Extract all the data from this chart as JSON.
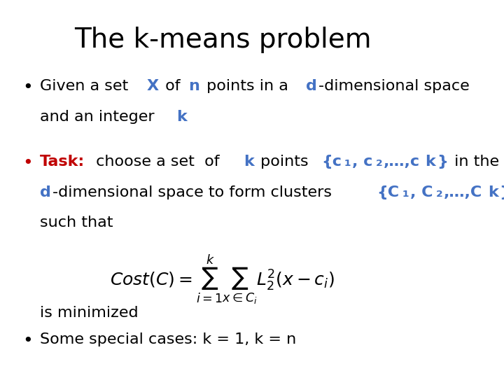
{
  "title": "The k-means problem",
  "title_fontsize": 28,
  "title_color": "#000000",
  "background_color": "#ffffff",
  "bullet1_parts": [
    {
      "text": "Given a set ",
      "color": "#000000",
      "bold": false
    },
    {
      "text": "X",
      "color": "#4472c4",
      "bold": true
    },
    {
      "text": " of ",
      "color": "#000000",
      "bold": false
    },
    {
      "text": "n",
      "color": "#4472c4",
      "bold": true
    },
    {
      "text": " points in a ",
      "color": "#000000",
      "bold": false
    },
    {
      "text": "d",
      "color": "#4472c4",
      "bold": true
    },
    {
      "text": "-dimensional space",
      "color": "#000000",
      "bold": false
    }
  ],
  "bullet1_line2_parts": [
    {
      "text": "and an integer ",
      "color": "#000000",
      "bold": false
    },
    {
      "text": "k",
      "color": "#4472c4",
      "bold": true
    }
  ],
  "bullet2_line1_parts": [
    {
      "text": "Task:",
      "color": "#c00000",
      "bold": true
    },
    {
      "text": " choose a set  of ",
      "color": "#000000",
      "bold": false
    },
    {
      "text": "k",
      "color": "#4472c4",
      "bold": true
    },
    {
      "text": " points ",
      "color": "#000000",
      "bold": false
    },
    {
      "text": "{c",
      "color": "#4472c4",
      "bold": true
    },
    {
      "text": "₁",
      "color": "#4472c4",
      "bold": true
    },
    {
      "text": ", c",
      "color": "#4472c4",
      "bold": true
    },
    {
      "text": "₂",
      "color": "#4472c4",
      "bold": true
    },
    {
      "text": ",…,c",
      "color": "#4472c4",
      "bold": true
    },
    {
      "text": "k",
      "color": "#4472c4",
      "bold": true
    },
    {
      "text": "}",
      "color": "#4472c4",
      "bold": true
    },
    {
      "text": " in the",
      "color": "#000000",
      "bold": false
    }
  ],
  "bullet2_line2_parts": [
    {
      "text": "d",
      "color": "#4472c4",
      "bold": true
    },
    {
      "text": "-dimensional space to form clusters ",
      "color": "#000000",
      "bold": false
    },
    {
      "text": "{C",
      "color": "#4472c4",
      "bold": true
    },
    {
      "text": "₁",
      "color": "#4472c4",
      "bold": true
    },
    {
      "text": ", C",
      "color": "#4472c4",
      "bold": true
    },
    {
      "text": "₂",
      "color": "#4472c4",
      "bold": true
    },
    {
      "text": ",…,C",
      "color": "#4472c4",
      "bold": true
    },
    {
      "text": "k",
      "color": "#4472c4",
      "bold": true
    },
    {
      "text": "}",
      "color": "#4472c4",
      "bold": true
    }
  ],
  "bullet2_line3": "such that",
  "bullet2_line4": "is minimized",
  "bullet3_parts": [
    {
      "text": "Some special cases: k = 1, k = n",
      "color": "#000000",
      "bold": false
    }
  ],
  "body_fontsize": 16,
  "blue_color": "#4472c4",
  "red_color": "#c00000"
}
